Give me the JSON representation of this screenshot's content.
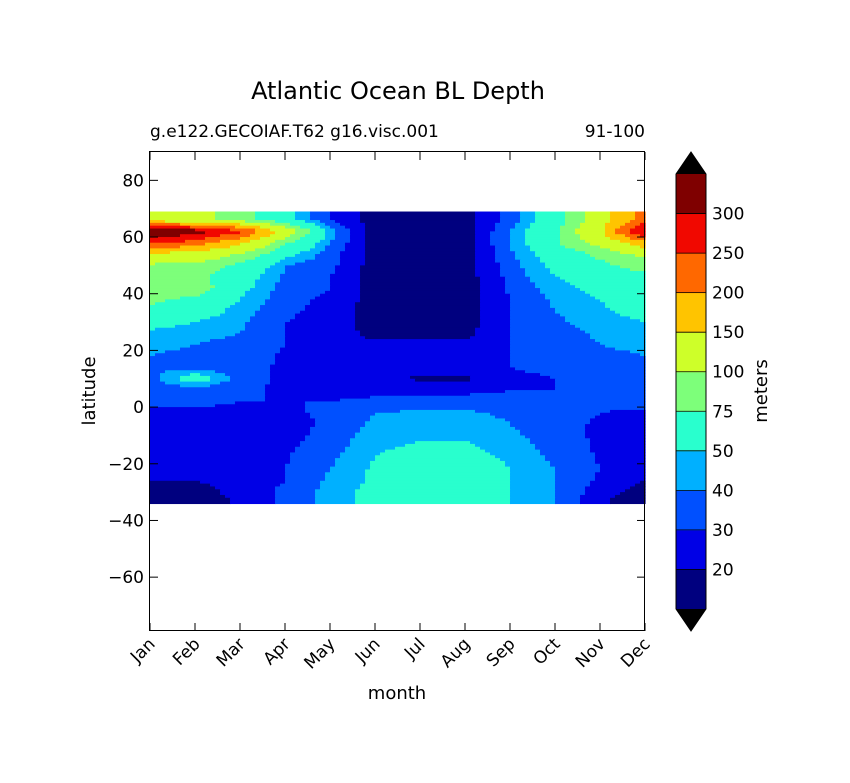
{
  "chart_data": {
    "type": "heatmap",
    "title": "Atlantic Ocean BL Depth",
    "subtitle_left": "g.e122.GECOIAF.T62 g16.visc.001",
    "subtitle_right": "91-100",
    "xlabel": "month",
    "ylabel": "latitude",
    "x_categories": [
      "Jan",
      "Feb",
      "Mar",
      "Apr",
      "May",
      "Jun",
      "Jul",
      "Aug",
      "Sep",
      "Oct",
      "Nov",
      "Dec"
    ],
    "y_ticks": [
      80,
      60,
      40,
      20,
      0,
      -20,
      -40,
      -60
    ],
    "ylim": [
      -79,
      90
    ],
    "data_lat_range": [
      -34,
      69
    ],
    "colorbar": {
      "label": "meters",
      "tick_labels": [
        "20",
        "30",
        "40",
        "50",
        "75",
        "100",
        "150",
        "200",
        "250",
        "300"
      ],
      "levels": [
        10,
        20,
        30,
        40,
        50,
        75,
        100,
        150,
        200,
        250,
        300,
        350
      ],
      "colors": [
        "#00007f",
        "#0000e6",
        "#0050ff",
        "#00b0ff",
        "#29ffce",
        "#7dff7a",
        "#ceff29",
        "#ffc400",
        "#ff6800",
        "#f10800",
        "#7f0000"
      ],
      "extend": "both",
      "under_color": "#000000",
      "over_color": "#000000"
    },
    "values_note": "",
    "latitudes": [
      66,
      62,
      58,
      54,
      50,
      46,
      42,
      38,
      34,
      30,
      26,
      22,
      18,
      14,
      10,
      6,
      2,
      -2,
      -6,
      -10,
      -14,
      -18,
      -22,
      -26,
      -30,
      -33
    ],
    "grid": [
      [
        130,
        110,
        85,
        55,
        30,
        15,
        15,
        15,
        35,
        60,
        120,
        230
      ],
      [
        350,
        330,
        260,
        120,
        45,
        15,
        15,
        15,
        40,
        70,
        140,
        320
      ],
      [
        260,
        230,
        160,
        80,
        40,
        15,
        15,
        15,
        40,
        70,
        110,
        180
      ],
      [
        140,
        130,
        95,
        55,
        35,
        15,
        15,
        15,
        38,
        60,
        80,
        110
      ],
      [
        95,
        90,
        70,
        40,
        33,
        15,
        15,
        15,
        35,
        55,
        70,
        85
      ],
      [
        85,
        80,
        60,
        38,
        30,
        15,
        15,
        15,
        33,
        50,
        60,
        70
      ],
      [
        80,
        90,
        55,
        35,
        30,
        15,
        15,
        15,
        32,
        45,
        55,
        65
      ],
      [
        80,
        70,
        50,
        33,
        28,
        15,
        15,
        15,
        30,
        42,
        50,
        60
      ],
      [
        70,
        60,
        45,
        32,
        27,
        15,
        15,
        15,
        30,
        40,
        48,
        55
      ],
      [
        60,
        50,
        42,
        30,
        26,
        15,
        15,
        15,
        30,
        38,
        45,
        50
      ],
      [
        45,
        42,
        40,
        30,
        25,
        17,
        17,
        17,
        30,
        35,
        42,
        45
      ],
      [
        42,
        40,
        38,
        30,
        25,
        22,
        22,
        22,
        30,
        33,
        40,
        42
      ],
      [
        40,
        38,
        36,
        28,
        25,
        25,
        25,
        25,
        30,
        32,
        38,
        40
      ],
      [
        38,
        36,
        35,
        28,
        25,
        24,
        24,
        24,
        30,
        32,
        36,
        38
      ],
      [
        36,
        60,
        34,
        28,
        25,
        25,
        18,
        18,
        28,
        30,
        34,
        36
      ],
      [
        34,
        33,
        32,
        28,
        27,
        27,
        28,
        28,
        30,
        30,
        32,
        34
      ],
      [
        32,
        32,
        30,
        30,
        30,
        32,
        33,
        33,
        32,
        32,
        31,
        32
      ],
      [
        28,
        28,
        28,
        28,
        32,
        40,
        42,
        42,
        38,
        35,
        30,
        29
      ],
      [
        25,
        25,
        25,
        26,
        32,
        42,
        45,
        45,
        40,
        35,
        28,
        26
      ],
      [
        25,
        25,
        25,
        26,
        34,
        45,
        48,
        48,
        42,
        35,
        28,
        26
      ],
      [
        25,
        25,
        26,
        28,
        35,
        48,
        52,
        52,
        45,
        36,
        28,
        26
      ],
      [
        24,
        24,
        26,
        29,
        38,
        50,
        56,
        56,
        48,
        38,
        29,
        25
      ],
      [
        22,
        22,
        25,
        30,
        40,
        52,
        60,
        60,
        50,
        40,
        30,
        22
      ],
      [
        20,
        20,
        25,
        30,
        42,
        52,
        62,
        62,
        50,
        40,
        28,
        20
      ],
      [
        15,
        15,
        24,
        32,
        44,
        55,
        65,
        65,
        50,
        40,
        25,
        15
      ],
      [
        12,
        12,
        22,
        32,
        44,
        55,
        65,
        65,
        50,
        40,
        22,
        12
      ]
    ]
  }
}
